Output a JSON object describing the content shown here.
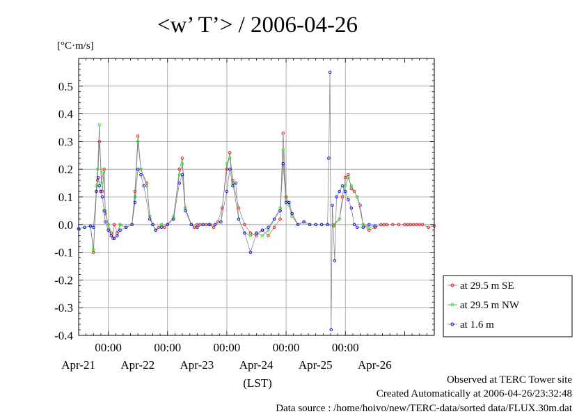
{
  "chart_data": {
    "type": "line",
    "title": "<w’ T’> / 2006-04-26",
    "ylabel": "[°C·m/s]",
    "xlabel": "(LST)",
    "ylim": [
      -0.4,
      0.6
    ],
    "xlim": [
      -0.5,
      5.5
    ],
    "x_unit": "days from 2006-04-21 00:00 LST",
    "yticks": [
      -0.4,
      -0.3,
      -0.2,
      -0.1,
      0.0,
      0.1,
      0.2,
      0.3,
      0.4,
      0.5
    ],
    "ytick_labels": [
      "-0.4",
      "-0.3",
      "-0.2",
      "-0.1",
      "0.0",
      "0.1",
      "0.2",
      "0.3",
      "0.4",
      "0.5"
    ],
    "xticks_time": [
      0,
      1,
      2,
      3,
      4
    ],
    "xtick_time_labels": [
      "00:00",
      "00:00",
      "00:00",
      "00:00",
      "00:00"
    ],
    "xtick_date_positions": [
      0,
      1,
      2,
      3,
      4,
      5
    ],
    "xtick_date_labels": [
      "Apr-21",
      "Apr-22",
      "Apr-23",
      "Apr-24",
      "Apr-25",
      "Apr-26"
    ],
    "grid": true,
    "legend_position": "right",
    "series": [
      {
        "name": "at 29.5 m SE",
        "color": "#ff0000",
        "x": [
          -0.5,
          -0.4,
          -0.3,
          -0.25,
          -0.2,
          -0.18,
          -0.15,
          -0.1,
          -0.07,
          -0.05,
          0.0,
          0.05,
          0.08,
          0.1,
          0.15,
          0.2,
          0.3,
          0.4,
          0.45,
          0.5,
          0.55,
          0.65,
          0.7,
          0.75,
          0.8,
          0.85,
          0.9,
          0.95,
          1.0,
          1.1,
          1.2,
          1.25,
          1.3,
          1.4,
          1.45,
          1.5,
          1.55,
          1.65,
          1.72,
          1.78,
          1.85,
          1.92,
          2.0,
          2.05,
          2.1,
          2.2,
          2.3,
          2.4,
          2.5,
          2.6,
          2.7,
          2.8,
          2.9,
          2.95,
          3.0,
          3.05,
          3.1,
          3.2,
          3.3,
          3.4,
          3.5,
          3.6,
          3.7,
          3.8,
          3.9,
          3.95,
          4.0,
          4.05,
          4.1,
          4.15,
          4.2,
          4.25,
          4.3,
          4.4,
          4.5,
          4.6,
          4.65,
          4.7,
          4.8,
          4.9,
          5.0,
          5.05,
          5.1,
          5.15,
          5.2,
          5.25,
          5.3,
          5.4,
          5.5
        ],
        "y": [
          -0.015,
          -0.01,
          -0.005,
          -0.1,
          0.12,
          0.16,
          0.3,
          0.12,
          0.2,
          0.04,
          0.0,
          -0.03,
          -0.05,
          0.0,
          -0.03,
          0.0,
          -0.01,
          0.0,
          0.12,
          0.32,
          0.2,
          0.15,
          0.03,
          0.0,
          -0.02,
          -0.01,
          0.0,
          -0.01,
          0.0,
          0.02,
          0.2,
          0.24,
          0.06,
          0.0,
          -0.01,
          0.0,
          0.0,
          0.0,
          0.0,
          -0.01,
          0.01,
          0.06,
          0.2,
          0.26,
          0.16,
          0.06,
          0.0,
          -0.03,
          -0.04,
          -0.02,
          -0.04,
          -0.01,
          0.02,
          0.33,
          0.1,
          0.08,
          0.04,
          0.0,
          0.01,
          0.0,
          0.0,
          0.0,
          0.0,
          -0.005,
          0.02,
          0.1,
          0.17,
          0.18,
          0.13,
          0.12,
          0.1,
          0.07,
          0.0,
          -0.02,
          -0.01,
          0.0,
          0.0,
          0.0,
          0.0,
          0.0,
          0.0,
          0.0,
          0.0,
          0.0,
          0.0,
          0.0,
          0.0,
          -0.01,
          -0.005
        ]
      },
      {
        "name": "at 29.5 m NW",
        "color": "#00ff00",
        "x": [
          -0.5,
          -0.4,
          -0.3,
          -0.25,
          -0.2,
          -0.18,
          -0.15,
          -0.12,
          -0.08,
          -0.05,
          0.0,
          0.05,
          0.1,
          0.15,
          0.2,
          0.3,
          0.4,
          0.45,
          0.5,
          0.55,
          0.65,
          0.7,
          0.75,
          0.8,
          0.9,
          1.0,
          1.1,
          1.2,
          1.25,
          1.3,
          1.4,
          1.5,
          1.6,
          1.7,
          1.8,
          1.9,
          2.0,
          2.05,
          2.1,
          2.2,
          2.3,
          2.4,
          2.5,
          2.6,
          2.7,
          2.8,
          2.9,
          2.95,
          3.0,
          3.05,
          3.1,
          3.2,
          3.3,
          3.4,
          3.5,
          3.6,
          3.7,
          3.8,
          3.9,
          4.0,
          4.05,
          4.1,
          4.2,
          4.3,
          4.4,
          4.5
        ],
        "y": [
          -0.015,
          -0.01,
          -0.005,
          -0.09,
          0.14,
          0.2,
          0.36,
          0.15,
          0.19,
          0.05,
          0.0,
          -0.04,
          -0.05,
          -0.04,
          0.0,
          -0.01,
          0.0,
          0.1,
          0.3,
          0.2,
          0.14,
          0.03,
          0.0,
          -0.02,
          0.0,
          0.0,
          0.03,
          0.18,
          0.22,
          0.06,
          0.0,
          -0.01,
          0.0,
          0.0,
          0.0,
          0.01,
          0.22,
          0.24,
          0.15,
          0.02,
          -0.03,
          -0.04,
          -0.03,
          -0.04,
          -0.02,
          0.02,
          0.06,
          0.27,
          0.09,
          0.07,
          0.03,
          0.0,
          0.01,
          0.0,
          0.0,
          0.0,
          0.0,
          0.0,
          0.02,
          0.14,
          0.17,
          0.14,
          0.1,
          0.0,
          -0.01,
          -0.005
        ]
      },
      {
        "name": "at 1.6 m",
        "color": "#0000ff",
        "x": [
          -0.5,
          -0.4,
          -0.3,
          -0.25,
          -0.2,
          -0.17,
          -0.15,
          -0.13,
          -0.1,
          -0.07,
          -0.05,
          0.0,
          0.05,
          0.1,
          0.15,
          0.2,
          0.3,
          0.4,
          0.45,
          0.5,
          0.55,
          0.6,
          0.7,
          0.75,
          0.8,
          0.9,
          1.0,
          1.1,
          1.2,
          1.25,
          1.3,
          1.4,
          1.5,
          1.6,
          1.7,
          1.8,
          1.9,
          2.0,
          2.05,
          2.1,
          2.15,
          2.2,
          2.3,
          2.4,
          2.5,
          2.6,
          2.7,
          2.8,
          2.9,
          2.95,
          3.0,
          3.05,
          3.1,
          3.2,
          3.3,
          3.4,
          3.5,
          3.6,
          3.7,
          3.72,
          3.74,
          3.76,
          3.78,
          3.82,
          3.85,
          3.9,
          3.95,
          4.0,
          4.05,
          4.1,
          4.15,
          4.2,
          4.3,
          4.4,
          4.5
        ],
        "y": [
          -0.015,
          -0.01,
          -0.005,
          -0.01,
          0.12,
          0.17,
          0.14,
          0.12,
          0.1,
          0.05,
          0.01,
          -0.02,
          -0.04,
          -0.05,
          -0.04,
          -0.02,
          -0.01,
          0.0,
          0.08,
          0.2,
          0.18,
          0.14,
          0.02,
          0.0,
          -0.02,
          -0.01,
          0.0,
          0.02,
          0.15,
          0.18,
          0.05,
          0.0,
          -0.01,
          0.0,
          0.0,
          0.0,
          0.01,
          0.12,
          0.2,
          0.14,
          0.15,
          0.02,
          -0.03,
          -0.1,
          -0.03,
          -0.02,
          -0.01,
          0.02,
          0.05,
          0.22,
          0.08,
          0.08,
          0.04,
          0.0,
          0.01,
          0.0,
          0.0,
          0.0,
          0.0,
          0.24,
          0.55,
          -0.38,
          0.07,
          -0.13,
          0.1,
          0.12,
          0.14,
          0.12,
          0.09,
          0.06,
          0.0,
          -0.01,
          -0.01,
          0.0,
          -0.005
        ]
      }
    ]
  },
  "footer": {
    "line1": "Observed at TERC Tower site",
    "line2": "Created Automatically at 2006-04-26/23:32:48",
    "line3": "Data source : /home/hoivo/new/TERC-data/sorted  data/FLUX.30m.dat"
  }
}
